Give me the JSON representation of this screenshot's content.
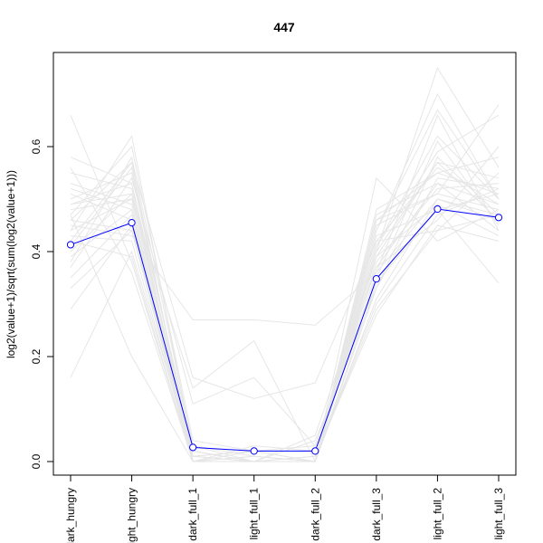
{
  "chart_data": {
    "type": "line",
    "title": "447",
    "xlabel": "",
    "ylabel": "log2(value+1)/sqrt(sum(log2(value+1)))",
    "categories": [
      "dark_hungry",
      "light_hungry",
      "dark_full_1",
      "light_full_1",
      "dark_full_2",
      "dark_full_3",
      "light_full_2",
      "light_full_3"
    ],
    "y_ticks": [
      "0.0",
      "0.2",
      "0.4",
      "0.6"
    ],
    "ylim": [
      0.0,
      0.75
    ],
    "grid": false,
    "legend": "none",
    "highlight_series": {
      "color": "#0000ff",
      "values": [
        0.413,
        0.455,
        0.027,
        0.02,
        0.02,
        0.348,
        0.481,
        0.465
      ]
    },
    "background_series": {
      "color": "#e6e6e6",
      "lines": [
        [
          0.49,
          0.53,
          0.0,
          0.0,
          0.0,
          0.4,
          0.57,
          0.46
        ],
        [
          0.44,
          0.5,
          0.01,
          0.02,
          0.03,
          0.37,
          0.53,
          0.49
        ],
        [
          0.38,
          0.58,
          0.03,
          0.01,
          0.0,
          0.41,
          0.62,
          0.5
        ],
        [
          0.52,
          0.48,
          0.0,
          0.0,
          0.01,
          0.3,
          0.47,
          0.52
        ],
        [
          0.46,
          0.44,
          0.02,
          0.0,
          0.0,
          0.45,
          0.51,
          0.48
        ],
        [
          0.41,
          0.56,
          0.0,
          0.03,
          0.02,
          0.36,
          0.66,
          0.44
        ],
        [
          0.55,
          0.52,
          0.01,
          0.0,
          0.0,
          0.42,
          0.44,
          0.55
        ],
        [
          0.35,
          0.47,
          0.0,
          0.0,
          0.04,
          0.33,
          0.58,
          0.47
        ],
        [
          0.47,
          0.6,
          0.04,
          0.02,
          0.0,
          0.39,
          0.49,
          0.43
        ],
        [
          0.43,
          0.42,
          0.0,
          0.01,
          0.0,
          0.46,
          0.55,
          0.58
        ],
        [
          0.66,
          0.38,
          0.0,
          0.0,
          0.01,
          0.28,
          0.45,
          0.42
        ],
        [
          0.4,
          0.51,
          0.02,
          0.0,
          0.0,
          0.44,
          0.7,
          0.5
        ],
        [
          0.5,
          0.55,
          0.01,
          0.0,
          0.0,
          0.38,
          0.52,
          0.53
        ],
        [
          0.29,
          0.45,
          0.0,
          0.02,
          0.02,
          0.35,
          0.61,
          0.45
        ],
        [
          0.53,
          0.49,
          0.0,
          0.0,
          0.0,
          0.43,
          0.48,
          0.51
        ],
        [
          0.45,
          0.43,
          0.27,
          0.27,
          0.26,
          0.36,
          0.5,
          0.47
        ],
        [
          0.42,
          0.57,
          0.16,
          0.12,
          0.15,
          0.42,
          0.56,
          0.49
        ],
        [
          0.48,
          0.5,
          0.14,
          0.23,
          0.0,
          0.33,
          0.54,
          0.52
        ],
        [
          0.16,
          0.4,
          0.01,
          0.0,
          0.0,
          0.4,
          0.75,
          0.56
        ],
        [
          0.56,
          0.36,
          0.0,
          0.0,
          0.0,
          0.54,
          0.42,
          0.48
        ],
        [
          0.37,
          0.54,
          0.11,
          0.16,
          0.03,
          0.37,
          0.46,
          0.6
        ],
        [
          0.51,
          0.46,
          0.0,
          0.0,
          0.0,
          0.41,
          0.59,
          0.66
        ],
        [
          0.44,
          0.62,
          0.02,
          0.0,
          0.0,
          0.31,
          0.5,
          0.46
        ],
        [
          0.47,
          0.2,
          0.0,
          0.01,
          0.0,
          0.47,
          0.53,
          0.44
        ],
        [
          0.39,
          0.48,
          0.0,
          0.0,
          0.05,
          0.39,
          0.57,
          0.54
        ],
        [
          0.58,
          0.53,
          0.03,
          0.0,
          0.0,
          0.46,
          0.51,
          0.68
        ],
        [
          0.33,
          0.44,
          0.0,
          0.0,
          0.0,
          0.34,
          0.48,
          0.34
        ],
        [
          0.49,
          0.51,
          0.01,
          0.02,
          0.0,
          0.44,
          0.67,
          0.5
        ],
        [
          0.42,
          0.39,
          0.0,
          0.0,
          0.01,
          0.29,
          0.44,
          0.47
        ],
        [
          0.46,
          0.57,
          0.0,
          0.0,
          0.0,
          0.48,
          0.55,
          0.51
        ]
      ]
    }
  }
}
